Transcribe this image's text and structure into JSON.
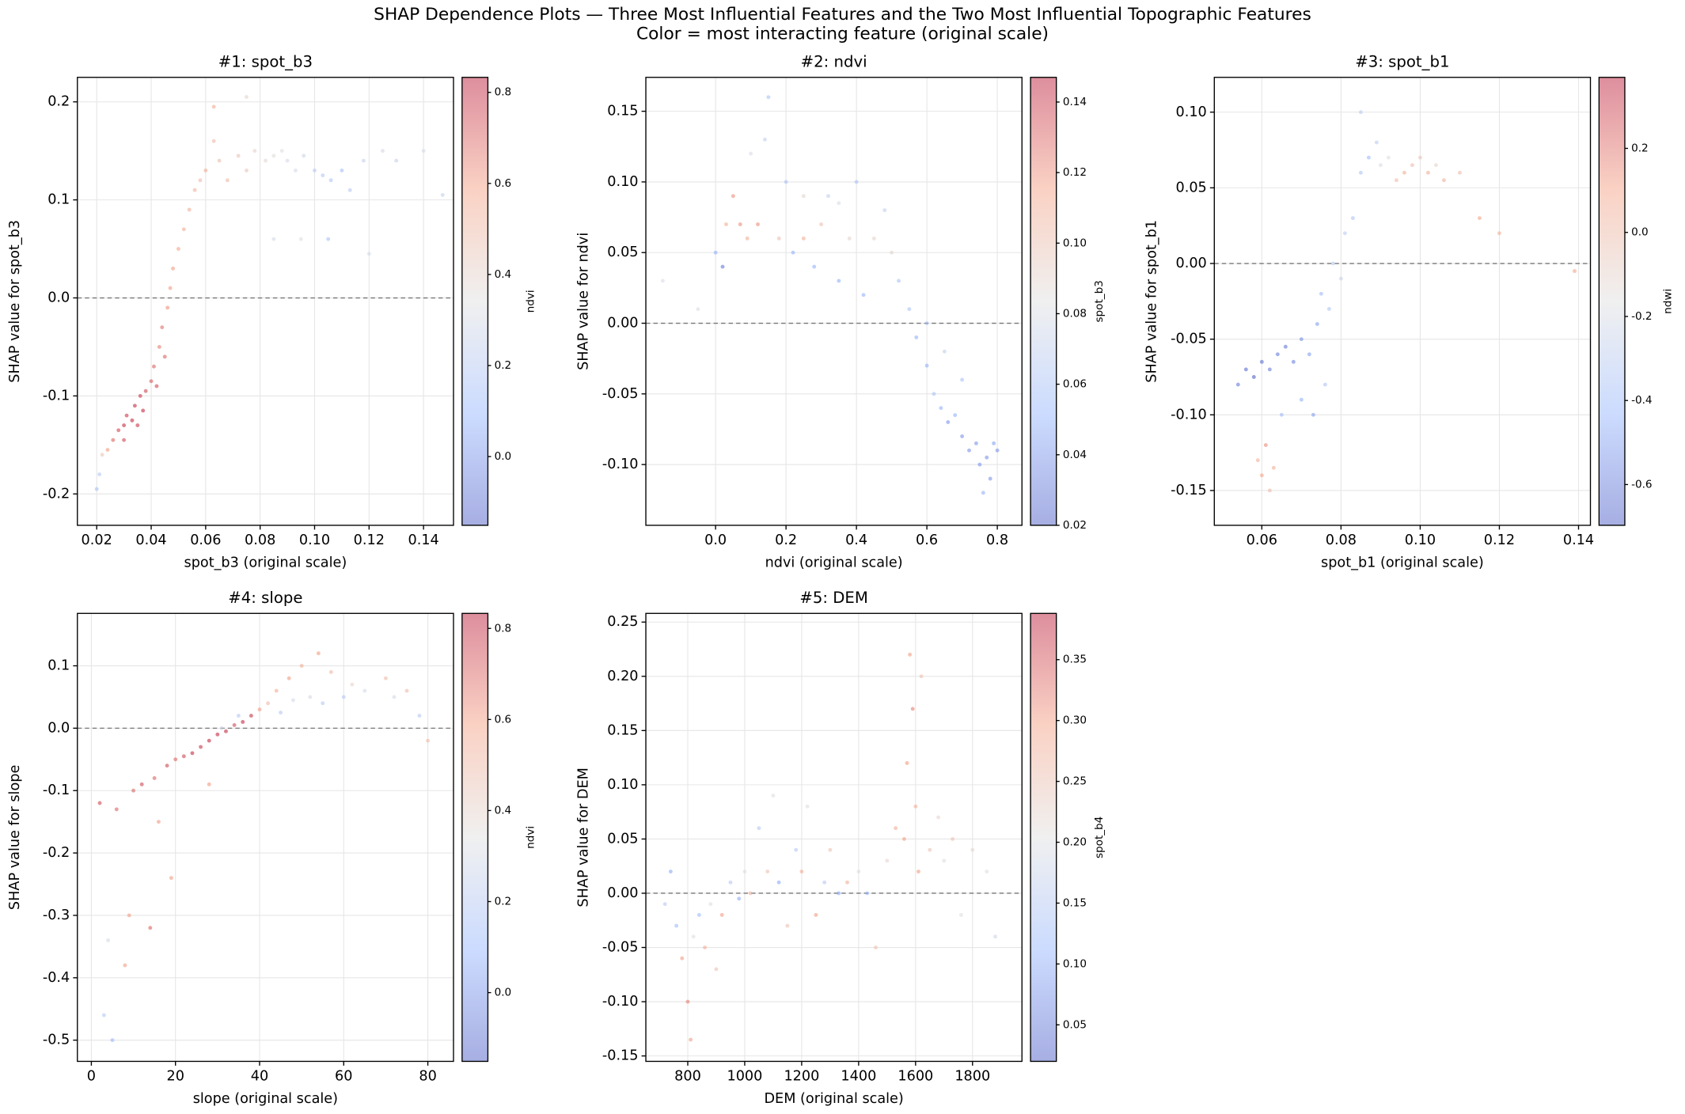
{
  "title": "SHAP Dependence Plots — Three Most Influential Features and the Two Most Influential Topographic Features",
  "subtitle": "Color = most interacting feature (original scale)",
  "chart_data": [
    {
      "type": "scatter",
      "title": "#1: spot_b3",
      "xlabel": "spot_b3 (original scale)",
      "ylabel": "SHAP value for spot_b3",
      "colormap": "coolwarm",
      "grid": true,
      "hline": 0,
      "xlim": [
        0.0129,
        0.151
      ],
      "ylim": [
        -0.232,
        0.225
      ],
      "xticks": [
        0.02,
        0.04,
        0.06,
        0.08,
        {
          "value": 0.1,
          "label": "0.10"
        },
        0.12,
        0.14
      ],
      "yticks": [
        -0.2,
        -0.1,
        {
          "value": 0,
          "label": "0.0"
        },
        0.1,
        0.2
      ],
      "colorbar": {
        "label": "ndvi",
        "lim": [
          -0.151,
          0.833
        ],
        "ticks": [
          {
            "value": 0,
            "label": "0.0"
          },
          0.2,
          0.4,
          0.6,
          0.8
        ]
      },
      "x": [
        0.02,
        0.021,
        0.022,
        0.024,
        0.026,
        0.028,
        0.03,
        0.031,
        0.033,
        0.034,
        0.036,
        0.037,
        0.038,
        0.04,
        0.041,
        0.043,
        0.044,
        0.046,
        0.047,
        0.048,
        0.05,
        0.052,
        0.054,
        0.056,
        0.058,
        0.06,
        0.063,
        0.065,
        0.068,
        0.072,
        0.075,
        0.078,
        0.082,
        0.085,
        0.088,
        0.09,
        0.093,
        0.096,
        0.1,
        0.103,
        0.106,
        0.11,
        0.113,
        0.118,
        0.125,
        0.13,
        0.14,
        0.147,
        0.085,
        0.095,
        0.105,
        0.12,
        0.063,
        0.075,
        0.03,
        0.035,
        0.042,
        0.045
      ],
      "values": [
        -0.195,
        -0.18,
        -0.16,
        -0.155,
        -0.145,
        -0.135,
        -0.13,
        -0.12,
        -0.125,
        -0.11,
        -0.1,
        -0.115,
        -0.095,
        -0.085,
        -0.07,
        -0.05,
        -0.03,
        -0.01,
        0.01,
        0.03,
        0.05,
        0.07,
        0.09,
        0.11,
        0.12,
        0.13,
        0.16,
        0.14,
        0.12,
        0.145,
        0.13,
        0.15,
        0.14,
        0.145,
        0.15,
        0.14,
        0.13,
        0.145,
        0.13,
        0.125,
        0.12,
        0.13,
        0.11,
        0.14,
        0.15,
        0.14,
        0.15,
        0.105,
        0.06,
        0.06,
        0.06,
        0.045,
        0.195,
        0.205,
        -0.145,
        -0.13,
        -0.09,
        -0.06
      ],
      "color_values": [
        0.15,
        0.2,
        0.45,
        0.6,
        0.7,
        0.75,
        0.8,
        0.78,
        0.8,
        0.8,
        0.78,
        0.8,
        0.75,
        0.72,
        0.7,
        0.65,
        0.68,
        0.62,
        0.6,
        0.6,
        0.58,
        0.55,
        0.55,
        0.52,
        0.5,
        0.55,
        0.5,
        0.48,
        0.5,
        0.45,
        0.45,
        0.4,
        0.38,
        0.35,
        0.35,
        0.3,
        0.3,
        0.28,
        0.2,
        0.2,
        0.18,
        0.15,
        0.2,
        0.25,
        0.3,
        0.25,
        0.3,
        0.25,
        0.3,
        0.35,
        0.15,
        0.3,
        0.55,
        0.4,
        0.75,
        0.78,
        0.75,
        0.7
      ]
    },
    {
      "type": "scatter",
      "title": "#2: ndvi",
      "xlabel": "ndvi (original scale)",
      "ylabel": "SHAP value for ndvi",
      "colormap": "coolwarm",
      "grid": true,
      "hline": 0,
      "xlim": [
        -0.198,
        0.87
      ],
      "ylim": [
        -0.143,
        0.174
      ],
      "xticks": [
        {
          "value": 0,
          "label": "0.0"
        },
        0.2,
        0.4,
        0.6,
        0.8
      ],
      "yticks": [
        {
          "value": -0.1,
          "label": "-0.10"
        },
        -0.05,
        {
          "value": 0,
          "label": "0.00"
        },
        0.05,
        {
          "value": 0.1,
          "label": "0.10"
        },
        0.15
      ],
      "colorbar": {
        "label": "spot_b3",
        "lim": [
          0.02,
          0.147
        ],
        "ticks": [
          0.02,
          0.04,
          0.06,
          0.08,
          {
            "value": 0.1,
            "label": "0.10"
          },
          0.12,
          0.14
        ]
      },
      "x": [
        -0.15,
        -0.05,
        0.0,
        0.02,
        0.03,
        0.05,
        0.07,
        0.09,
        0.1,
        0.12,
        0.14,
        0.15,
        0.18,
        0.2,
        0.22,
        0.25,
        0.28,
        0.3,
        0.32,
        0.35,
        0.38,
        0.4,
        0.42,
        0.45,
        0.48,
        0.5,
        0.52,
        0.55,
        0.57,
        0.6,
        0.62,
        0.64,
        0.66,
        0.68,
        0.7,
        0.72,
        0.74,
        0.75,
        0.77,
        0.78,
        0.79,
        0.8,
        0.76,
        0.7,
        0.65,
        0.6,
        0.35,
        0.25
      ],
      "values": [
        0.03,
        0.01,
        0.05,
        0.04,
        0.07,
        0.09,
        0.07,
        0.06,
        0.12,
        0.07,
        0.13,
        0.16,
        0.06,
        0.1,
        0.05,
        0.06,
        0.04,
        0.07,
        0.09,
        0.03,
        0.06,
        0.1,
        0.02,
        0.06,
        0.08,
        0.05,
        0.03,
        0.01,
        -0.01,
        -0.03,
        -0.05,
        -0.06,
        -0.07,
        -0.065,
        -0.08,
        -0.09,
        -0.085,
        -0.1,
        -0.095,
        -0.11,
        -0.085,
        -0.09,
        -0.12,
        -0.04,
        -0.02,
        0.0,
        0.085,
        0.09
      ],
      "color_values": [
        0.08,
        0.08,
        0.05,
        0.03,
        0.11,
        0.12,
        0.12,
        0.11,
        0.08,
        0.12,
        0.07,
        0.06,
        0.1,
        0.06,
        0.05,
        0.11,
        0.05,
        0.1,
        0.07,
        0.05,
        0.09,
        0.06,
        0.05,
        0.09,
        0.07,
        0.09,
        0.06,
        0.06,
        0.05,
        0.05,
        0.06,
        0.05,
        0.04,
        0.05,
        0.04,
        0.04,
        0.04,
        0.04,
        0.04,
        0.04,
        0.045,
        0.04,
        0.05,
        0.06,
        0.07,
        0.06,
        0.08,
        0.09
      ]
    },
    {
      "type": "scatter",
      "title": "#3: spot_b1",
      "xlabel": "spot_b1 (original scale)",
      "ylabel": "SHAP value for spot_b1",
      "colormap": "coolwarm",
      "grid": true,
      "hline": 0,
      "xlim": [
        0.048,
        0.143
      ],
      "ylim": [
        -0.173,
        0.123
      ],
      "xticks": [
        0.06,
        0.08,
        {
          "value": 0.1,
          "label": "0.10"
        },
        0.12,
        0.14
      ],
      "yticks": [
        -0.15,
        {
          "value": -0.1,
          "label": "-0.10"
        },
        -0.05,
        {
          "value": 0,
          "label": "0.00"
        },
        0.05,
        {
          "value": 0.1,
          "label": "0.10"
        }
      ],
      "colorbar": {
        "label": "ndwi",
        "lim": [
          -0.697,
          0.369
        ],
        "ticks": [
          -0.6,
          -0.4,
          -0.2,
          {
            "value": 0,
            "label": "0.0"
          },
          0.2
        ]
      },
      "x": [
        0.054,
        0.056,
        0.058,
        0.06,
        0.062,
        0.064,
        0.066,
        0.068,
        0.07,
        0.072,
        0.074,
        0.075,
        0.077,
        0.078,
        0.08,
        0.081,
        0.083,
        0.085,
        0.087,
        0.089,
        0.09,
        0.092,
        0.094,
        0.096,
        0.098,
        0.1,
        0.102,
        0.104,
        0.106,
        0.11,
        0.115,
        0.12,
        0.139,
        0.059,
        0.06,
        0.061,
        0.063,
        0.062,
        0.065,
        0.07,
        0.073,
        0.076,
        0.085
      ],
      "values": [
        -0.08,
        -0.07,
        -0.075,
        -0.065,
        -0.07,
        -0.06,
        -0.055,
        -0.065,
        -0.05,
        -0.06,
        -0.04,
        -0.02,
        -0.03,
        0.0,
        -0.01,
        0.02,
        0.03,
        0.06,
        0.07,
        0.08,
        0.065,
        0.07,
        0.055,
        0.06,
        0.065,
        0.07,
        0.06,
        0.065,
        0.055,
        0.06,
        0.03,
        0.02,
        -0.005,
        -0.13,
        -0.14,
        -0.12,
        -0.135,
        -0.15,
        -0.1,
        -0.09,
        -0.1,
        -0.08,
        0.1
      ],
      "color_values": [
        -0.6,
        -0.65,
        -0.68,
        -0.65,
        -0.6,
        -0.6,
        -0.62,
        -0.58,
        -0.55,
        -0.5,
        -0.5,
        -0.4,
        -0.35,
        -0.3,
        -0.25,
        -0.3,
        -0.35,
        -0.35,
        -0.4,
        -0.3,
        -0.2,
        -0.15,
        0.0,
        0.05,
        0.0,
        -0.05,
        0.05,
        -0.1,
        0.05,
        0.0,
        0.1,
        0.05,
        0.1,
        0.05,
        0.1,
        0.15,
        0.05,
        0.0,
        -0.4,
        -0.45,
        -0.5,
        -0.35,
        -0.3
      ]
    },
    {
      "type": "scatter",
      "title": "#4: slope",
      "xlabel": "slope (original scale)",
      "ylabel": "SHAP value for slope",
      "colormap": "coolwarm",
      "grid": true,
      "hline": 0,
      "xlim": [
        -3.32,
        86.1
      ],
      "ylim": [
        -0.534,
        0.184
      ],
      "xticks": [
        0,
        20,
        40,
        60,
        80
      ],
      "yticks": [
        -0.5,
        -0.4,
        -0.3,
        -0.2,
        -0.1,
        {
          "value": 0,
          "label": "0.0"
        },
        0.1
      ],
      "colorbar": {
        "label": "ndvi",
        "lim": [
          -0.151,
          0.833
        ],
        "ticks": [
          {
            "value": 0,
            "label": "0.0"
          },
          0.2,
          0.4,
          0.6,
          0.8
        ]
      },
      "x": [
        2,
        3,
        4,
        5,
        6,
        8,
        9,
        10,
        12,
        14,
        15,
        18,
        19,
        20,
        22,
        24,
        26,
        28,
        30,
        31,
        32,
        34,
        35,
        36,
        38,
        40,
        42,
        44,
        45,
        47,
        48,
        50,
        52,
        54,
        55,
        57,
        60,
        62,
        65,
        70,
        72,
        75,
        78,
        80,
        28,
        16
      ],
      "values": [
        -0.12,
        -0.46,
        -0.34,
        -0.5,
        -0.13,
        -0.38,
        -0.3,
        -0.1,
        -0.09,
        -0.32,
        -0.08,
        -0.06,
        -0.24,
        -0.05,
        -0.045,
        -0.04,
        -0.03,
        -0.02,
        -0.01,
        0.0,
        -0.005,
        0.005,
        0.02,
        0.01,
        0.02,
        0.03,
        0.04,
        0.06,
        0.025,
        0.08,
        0.045,
        0.1,
        0.05,
        0.12,
        0.04,
        0.09,
        0.05,
        0.07,
        0.06,
        0.08,
        0.05,
        0.06,
        0.02,
        -0.02,
        -0.09,
        -0.15
      ],
      "color_values": [
        0.75,
        0.2,
        0.3,
        0.1,
        0.7,
        0.6,
        0.6,
        0.7,
        0.75,
        0.7,
        0.7,
        0.75,
        0.6,
        0.7,
        0.75,
        0.8,
        0.78,
        0.8,
        0.8,
        0.3,
        0.8,
        0.75,
        0.2,
        0.8,
        0.78,
        0.6,
        0.5,
        0.55,
        0.2,
        0.6,
        0.3,
        0.55,
        0.3,
        0.6,
        0.2,
        0.5,
        0.2,
        0.4,
        0.3,
        0.5,
        0.3,
        0.5,
        0.2,
        0.5,
        0.6,
        0.6
      ]
    },
    {
      "type": "scatter",
      "title": "#5: DEM",
      "xlabel": "DEM (original scale)",
      "ylabel": "SHAP value for DEM",
      "colormap": "coolwarm",
      "grid": true,
      "hline": 0,
      "xlim": [
        652.8,
        1973.6
      ],
      "ylim": [
        -0.155,
        0.258
      ],
      "xticks": [
        800,
        1000,
        1200,
        1400,
        1600,
        1800
      ],
      "yticks": [
        -0.15,
        {
          "value": -0.1,
          "label": "-0.10"
        },
        -0.05,
        {
          "value": 0,
          "label": "0.00"
        },
        0.05,
        {
          "value": 0.1,
          "label": "0.10"
        },
        0.15,
        {
          "value": 0.2,
          "label": "0.20"
        },
        0.25
      ],
      "colorbar": {
        "label": "spot_b4",
        "lim": [
          0.02,
          0.388
        ],
        "ticks": [
          0.05,
          {
            "value": 0.1,
            "label": "0.10"
          },
          0.15,
          {
            "value": 0.2,
            "label": "0.20"
          },
          0.25,
          {
            "value": 0.3,
            "label": "0.30"
          },
          0.35
        ]
      },
      "x": [
        720,
        740,
        760,
        780,
        800,
        810,
        820,
        840,
        860,
        880,
        900,
        920,
        950,
        980,
        1000,
        1020,
        1050,
        1080,
        1100,
        1120,
        1150,
        1180,
        1200,
        1220,
        1250,
        1280,
        1300,
        1330,
        1360,
        1400,
        1430,
        1460,
        1500,
        1530,
        1560,
        1570,
        1580,
        1590,
        1600,
        1610,
        1620,
        1650,
        1680,
        1700,
        1730,
        1760,
        1800,
        1850,
        1880
      ],
      "values": [
        -0.01,
        0.02,
        -0.03,
        -0.06,
        -0.1,
        -0.135,
        -0.04,
        -0.02,
        -0.05,
        -0.01,
        -0.07,
        -0.02,
        0.01,
        -0.005,
        0.02,
        0.0,
        0.06,
        0.02,
        0.09,
        0.01,
        -0.03,
        0.04,
        0.02,
        0.08,
        -0.02,
        0.01,
        0.04,
        0.0,
        0.01,
        0.02,
        0.0,
        -0.05,
        0.03,
        0.06,
        0.05,
        0.12,
        0.22,
        0.17,
        0.08,
        0.02,
        0.2,
        0.04,
        0.07,
        0.03,
        0.05,
        -0.02,
        0.04,
        0.02,
        -0.04
      ],
      "color_values": [
        0.15,
        0.1,
        0.12,
        0.3,
        0.32,
        0.3,
        0.2,
        0.12,
        0.28,
        0.2,
        0.25,
        0.3,
        0.15,
        0.1,
        0.2,
        0.27,
        0.15,
        0.25,
        0.2,
        0.1,
        0.25,
        0.15,
        0.28,
        0.2,
        0.3,
        0.15,
        0.25,
        0.1,
        0.28,
        0.2,
        0.12,
        0.25,
        0.22,
        0.28,
        0.3,
        0.3,
        0.3,
        0.32,
        0.28,
        0.3,
        0.25,
        0.25,
        0.22,
        0.2,
        0.25,
        0.2,
        0.22,
        0.2,
        0.18
      ]
    }
  ]
}
